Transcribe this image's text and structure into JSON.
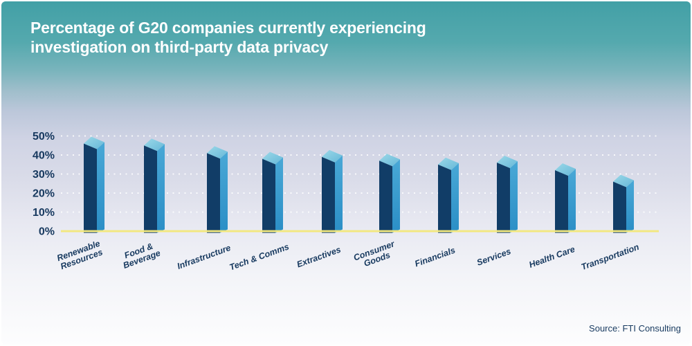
{
  "title": {
    "line1": "Percentage of G20 companies currently experiencing",
    "line2": "investigation on third-party data privacy"
  },
  "source": "Source: FTI Consulting",
  "chart_data": {
    "type": "bar",
    "style": "3d-column",
    "title": "Percentage of G20 companies currently experiencing investigation on third-party data privacy",
    "categories": [
      "Renewable Resources",
      "Food & Beverage",
      "Infrastructure",
      "Tech & Comms",
      "Extractives",
      "Consumer Goods",
      "Financials",
      "Services",
      "Health Care",
      "Transportation"
    ],
    "categories_display": [
      [
        "Renewable",
        "Resources"
      ],
      [
        "Food &",
        "Beverage"
      ],
      [
        "Infrastructure"
      ],
      [
        "Tech & Comms"
      ],
      [
        "Extractives"
      ],
      [
        "Consumer",
        "Goods"
      ],
      [
        "Financials"
      ],
      [
        "Services"
      ],
      [
        "Health Care"
      ],
      [
        "Transportation"
      ]
    ],
    "values": [
      46,
      45,
      41,
      38,
      39,
      37,
      35,
      36,
      32,
      26
    ],
    "unit": "%",
    "xlabel": "",
    "ylabel": "",
    "ylim": [
      0,
      50
    ],
    "ytick_step": 10,
    "ytick_labels": [
      "0%",
      "10%",
      "20%",
      "30%",
      "40%",
      "50%"
    ],
    "grid": "dotted-white-horizontal",
    "legend": "none",
    "colors": {
      "bar_front": "#113d67",
      "bar_side_top": "#49a8d6",
      "bar_side_bottom": "#2b8ec6",
      "bar_top_light": "#9bd8e8",
      "bar_top_deep": "#66b8d8",
      "baseline": "#f2e87f",
      "axis_text": "#17395f",
      "grid_dot": "#ffffff",
      "title_text": "#ffffff",
      "bg_top": "#42a0a6",
      "bg_bottom": "#fdfdfe"
    }
  }
}
